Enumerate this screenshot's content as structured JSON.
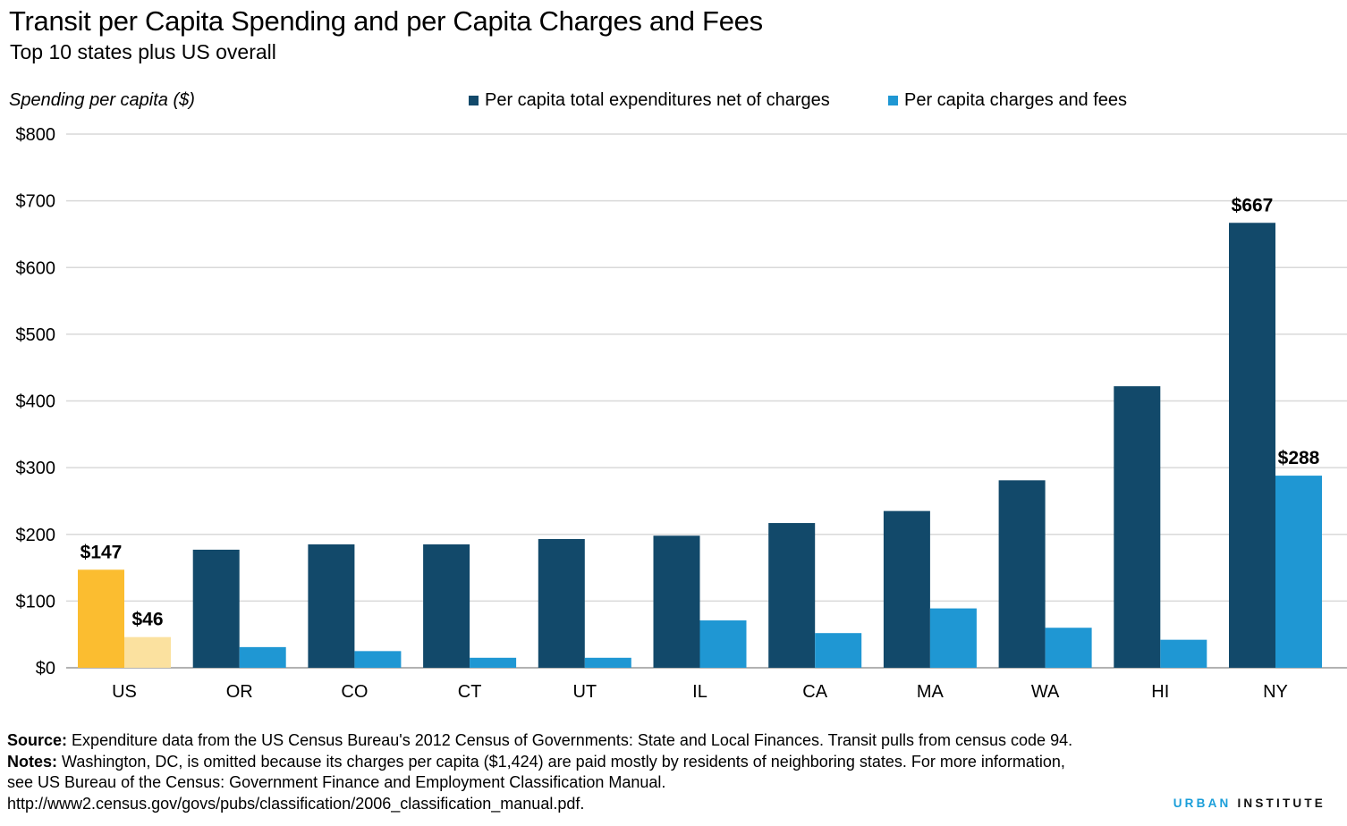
{
  "chart_data": {
    "type": "bar",
    "title": "Transit per Capita Spending and per Capita Charges and Fees",
    "subtitle": "Top 10 states plus US overall",
    "ylabel": "Spending per capita ($)",
    "ylim": [
      0,
      800
    ],
    "yticks": [
      0,
      100,
      200,
      300,
      400,
      500,
      600,
      700,
      800
    ],
    "ytick_labels": [
      "$0",
      "$100",
      "$200",
      "$300",
      "$400",
      "$500",
      "$600",
      "$700",
      "$800"
    ],
    "grid": true,
    "legend_position": "top",
    "categories": [
      "US",
      "OR",
      "CO",
      "CT",
      "UT",
      "IL",
      "CA",
      "MA",
      "WA",
      "HI",
      "NY"
    ],
    "series": [
      {
        "name": "Per capita total expenditures net of charges",
        "color": "#12496a",
        "highlight_color": "#fbbd30",
        "values": [
          147,
          177,
          185,
          185,
          193,
          198,
          217,
          235,
          281,
          422,
          667
        ]
      },
      {
        "name": "Per capita charges and fees",
        "color": "#1f97d3",
        "highlight_color": "#fbe19f",
        "values": [
          46,
          31,
          25,
          15,
          15,
          71,
          52,
          89,
          60,
          42,
          288
        ]
      }
    ],
    "highlight_category": "US",
    "data_labels": [
      {
        "category": "US",
        "series": 0,
        "text": "$147"
      },
      {
        "category": "US",
        "series": 1,
        "text": "$46"
      },
      {
        "category": "NY",
        "series": 0,
        "text": "$667"
      },
      {
        "category": "NY",
        "series": 1,
        "text": "$288"
      }
    ]
  },
  "footer": {
    "source_label": "Source:",
    "source_text": "Expenditure data from the US Census Bureau's 2012 Census of Governments: State and Local Finances. Transit pulls from census code 94.",
    "notes_label": "Notes:",
    "notes_line1": "Washington, DC, is omitted because its charges per capita ($1,424) are paid mostly by residents of neighboring states.  For more information,",
    "notes_line2": "see US Bureau of the Census: Government Finance and Employment Classification Manual.",
    "notes_line3": "http://www2.census.gov/govs/pubs/classification/2006_classification_manual.pdf."
  },
  "brand": {
    "part1": "URBAN",
    "part2": "INSTITUTE"
  }
}
